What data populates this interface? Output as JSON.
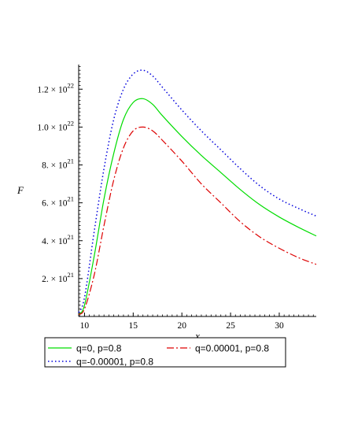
{
  "chart_data": {
    "type": "line",
    "xlabel": "x",
    "ylabel": "F",
    "xlim": [
      9.4,
      33.8
    ],
    "ylim": [
      0,
      1.33e+22
    ],
    "x_ticks": [
      {
        "value": 10,
        "label": "10"
      },
      {
        "value": 15,
        "label": "15"
      },
      {
        "value": 20,
        "label": "20"
      },
      {
        "value": 25,
        "label": "25"
      },
      {
        "value": 30,
        "label": "30"
      }
    ],
    "y_ticks": [
      {
        "value": 2e+21,
        "mantissa": "2.",
        "exponent": "21"
      },
      {
        "value": 4e+21,
        "mantissa": "4.",
        "exponent": "21"
      },
      {
        "value": 6e+21,
        "mantissa": "6.",
        "exponent": "21"
      },
      {
        "value": 8e+21,
        "mantissa": "8.",
        "exponent": "21"
      },
      {
        "value": 1e+22,
        "mantissa": "1.0",
        "exponent": "22"
      },
      {
        "value": 1.2e+22,
        "mantissa": "1.2",
        "exponent": "22"
      }
    ],
    "y_tick_times": "× 10",
    "grid": false,
    "legend_position": "bottom",
    "series": [
      {
        "name": "q=0, p=0.8",
        "color": "#00dd00",
        "dash": "solid",
        "x": [
          9.4,
          10,
          11,
          12,
          13,
          14,
          15,
          16,
          17,
          18,
          20,
          22,
          24,
          26,
          28,
          30,
          32,
          33.8
        ],
        "y": [
          1e+20,
          6e+20,
          3.2e+21,
          6.2e+21,
          8.6e+21,
          1.04e+22,
          1.13e+22,
          1.15e+22,
          1.12e+22,
          1.06e+22,
          9.5e+21,
          8.5e+21,
          7.6e+21,
          6.7e+21,
          5.9e+21,
          5.25e+21,
          4.7e+21,
          4.25e+21
        ]
      },
      {
        "name": "q=0.00001, p=0.8",
        "color": "#dd0000",
        "dash": "dashdot",
        "x": [
          9.4,
          10,
          11,
          12,
          13,
          14,
          15,
          16,
          17,
          18,
          20,
          22,
          24,
          26,
          28,
          30,
          32,
          33.8
        ],
        "y": [
          1e+20,
          4e+20,
          2.2e+21,
          4.8e+21,
          7.2e+21,
          8.9e+21,
          9.8e+21,
          1e+22,
          9.8e+21,
          9.3e+21,
          8.2e+21,
          7e+21,
          6e+21,
          5e+21,
          4.2e+21,
          3.6e+21,
          3.1e+21,
          2.75e+21
        ]
      },
      {
        "name": "q=-0.00001, p=0.8",
        "color": "#0000dd",
        "dash": "dotted",
        "x": [
          9.4,
          10,
          11,
          12,
          13,
          14,
          15,
          16,
          17,
          18,
          20,
          22,
          24,
          26,
          28,
          30,
          32,
          33.8
        ],
        "y": [
          2e+20,
          1e+21,
          4.5e+21,
          7.8e+21,
          1.04e+22,
          1.2e+22,
          1.28e+22,
          1.3e+22,
          1.27e+22,
          1.21e+22,
          1.09e+22,
          9.8e+21,
          8.8e+21,
          7.8e+21,
          6.9e+21,
          6.2e+21,
          5.7e+21,
          5.3e+21
        ]
      }
    ]
  }
}
